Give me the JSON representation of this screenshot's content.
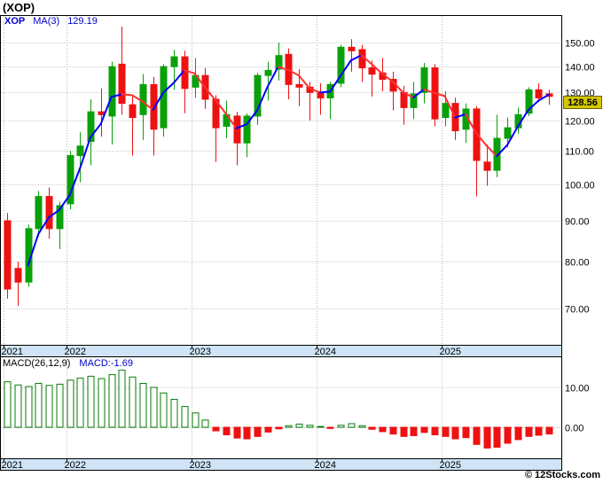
{
  "page": {
    "title": "(XOP)",
    "copyright": "© 12Stocks.com"
  },
  "legend": {
    "symbol": "XOP",
    "ma_label": "MA(3)",
    "ma_value": "129.19"
  },
  "macd_legend": {
    "label": "MACD(26,12,9)",
    "value": "MACD:-1.69"
  },
  "last_price_label": "128.56",
  "colors": {
    "up": "#0aa00a",
    "down": "#ee1111",
    "ma_up": "#0000ff",
    "ma_down": "#ff3030",
    "band_bg": "#cfe4f6",
    "grid": "#b6b6b6",
    "macd_pos": "#0a7a0a",
    "last_price_bg": "#d4c700",
    "accent_text": "#0000cc"
  },
  "chart_data": [
    {
      "type": "candlestick",
      "symbol": "XOP",
      "interval": "monthly",
      "x": [
        "2021-07",
        "2021-08",
        "2021-09",
        "2021-10",
        "2021-11",
        "2021-12",
        "2022-01",
        "2022-02",
        "2022-03",
        "2022-04",
        "2022-05",
        "2022-06",
        "2022-07",
        "2022-08",
        "2022-09",
        "2022-10",
        "2022-11",
        "2022-12",
        "2023-01",
        "2023-02",
        "2023-03",
        "2023-04",
        "2023-05",
        "2023-06",
        "2023-07",
        "2023-08",
        "2023-09",
        "2023-10",
        "2023-11",
        "2023-12",
        "2024-01",
        "2024-02",
        "2024-03",
        "2024-04",
        "2024-05",
        "2024-06",
        "2024-07",
        "2024-08",
        "2024-09",
        "2024-10",
        "2024-11",
        "2024-12",
        "2025-01",
        "2025-02",
        "2025-03",
        "2025-04",
        "2025-05",
        "2025-06",
        "2025-07",
        "2025-08",
        "2025-09",
        "2025-10",
        "2025-11"
      ],
      "ohlc": [
        [
          90,
          92,
          72,
          74
        ],
        [
          78.5,
          80,
          70.5,
          75.5
        ],
        [
          75.5,
          89,
          74.5,
          88
        ],
        [
          88,
          98,
          86,
          96.5
        ],
        [
          96.5,
          99,
          85.5,
          88
        ],
        [
          88,
          95,
          83,
          94
        ],
        [
          94.5,
          110,
          93,
          108.5
        ],
        [
          108.5,
          116,
          100.5,
          111.5
        ],
        [
          113,
          127.5,
          105.5,
          123
        ],
        [
          123,
          131.5,
          114.5,
          122
        ],
        [
          121.5,
          142,
          112,
          140
        ],
        [
          141,
          157,
          122,
          126
        ],
        [
          125.5,
          128.5,
          108.5,
          121
        ],
        [
          122,
          137,
          113.5,
          133
        ],
        [
          133,
          136,
          108.5,
          117
        ],
        [
          117.5,
          141,
          114.5,
          140
        ],
        [
          140,
          147,
          131,
          144
        ],
        [
          144,
          146.5,
          122.5,
          131.5
        ],
        [
          132,
          143.5,
          128,
          136.5
        ],
        [
          136.5,
          139.5,
          124,
          127.5
        ],
        [
          127.5,
          129,
          106.5,
          117.5
        ],
        [
          118,
          127,
          114,
          122
        ],
        [
          121.5,
          123,
          105.5,
          112.5
        ],
        [
          112.5,
          122.5,
          108,
          121.5
        ],
        [
          121.5,
          137.5,
          118.5,
          136.5
        ],
        [
          136.5,
          142,
          127,
          138.5
        ],
        [
          139,
          150,
          134.5,
          144.5
        ],
        [
          145,
          147.5,
          127.5,
          133
        ],
        [
          133,
          139,
          125,
          132
        ],
        [
          132,
          134,
          120,
          130
        ],
        [
          130,
          133.5,
          122,
          128
        ],
        [
          128,
          134,
          120.5,
          133
        ],
        [
          133.5,
          149,
          132,
          148
        ],
        [
          148,
          151.5,
          138,
          146.5
        ],
        [
          147,
          149,
          134,
          139.5
        ],
        [
          139.5,
          142.5,
          128.5,
          137
        ],
        [
          137.5,
          143.5,
          130.5,
          135
        ],
        [
          135,
          138,
          123.5,
          130.5
        ],
        [
          130,
          132.5,
          118.5,
          124.5
        ],
        [
          124.5,
          134,
          120.5,
          129.5
        ],
        [
          130,
          141.5,
          126,
          139.5
        ],
        [
          139.5,
          141,
          118,
          120.5
        ],
        [
          121,
          130.5,
          118,
          126
        ],
        [
          126,
          128,
          113.5,
          116.5
        ],
        [
          117,
          126,
          112.5,
          124
        ],
        [
          124,
          125,
          96.5,
          107
        ],
        [
          106.5,
          112,
          99.5,
          104
        ],
        [
          104,
          122,
          102,
          114
        ],
        [
          114,
          121,
          111,
          117.5
        ],
        [
          117.5,
          124.5,
          115.5,
          122
        ],
        [
          122.5,
          132,
          121.5,
          131
        ],
        [
          131,
          133.5,
          126.5,
          128
        ],
        [
          129.5,
          131,
          125.5,
          128.56
        ]
      ],
      "overlay_ma": {
        "label": "MA(3)",
        "period": 3,
        "last_value": 129.19
      },
      "y_axis": {
        "scale": "log",
        "ticks": [
          150,
          140,
          130,
          120,
          110,
          100,
          90,
          80,
          70
        ],
        "last_price": 128.56
      },
      "x_ticks": [
        {
          "label": "2021",
          "index": 0
        },
        {
          "label": "2022",
          "index": 6
        },
        {
          "label": "2023",
          "index": 18
        },
        {
          "label": "2024",
          "index": 30
        },
        {
          "label": "2025",
          "index": 42
        }
      ]
    },
    {
      "type": "bar",
      "name": "MACD(26,12,9) histogram",
      "values": [
        11.4,
        10.6,
        10.2,
        11.0,
        10.5,
        10.8,
        11.8,
        12.3,
        12.8,
        12.2,
        13.2,
        14.3,
        12.6,
        11.0,
        10.0,
        8.6,
        7.0,
        5.2,
        3.6,
        1.8,
        -0.9,
        -1.9,
        -2.7,
        -2.9,
        -2.3,
        -1.2,
        -0.4,
        0.4,
        0.8,
        0.5,
        0.2,
        -0.3,
        0.5,
        0.9,
        0.4,
        -0.5,
        -1.1,
        -1.7,
        -2.3,
        -2.1,
        -1.3,
        -1.9,
        -2.3,
        -2.9,
        -2.6,
        -4.3,
        -5.2,
        -5.0,
        -4.0,
        -3.1,
        -2.3,
        -2.0,
        -1.69
      ],
      "last_value": -1.69,
      "y_axis": {
        "ticks": [
          10,
          0
        ]
      }
    }
  ]
}
